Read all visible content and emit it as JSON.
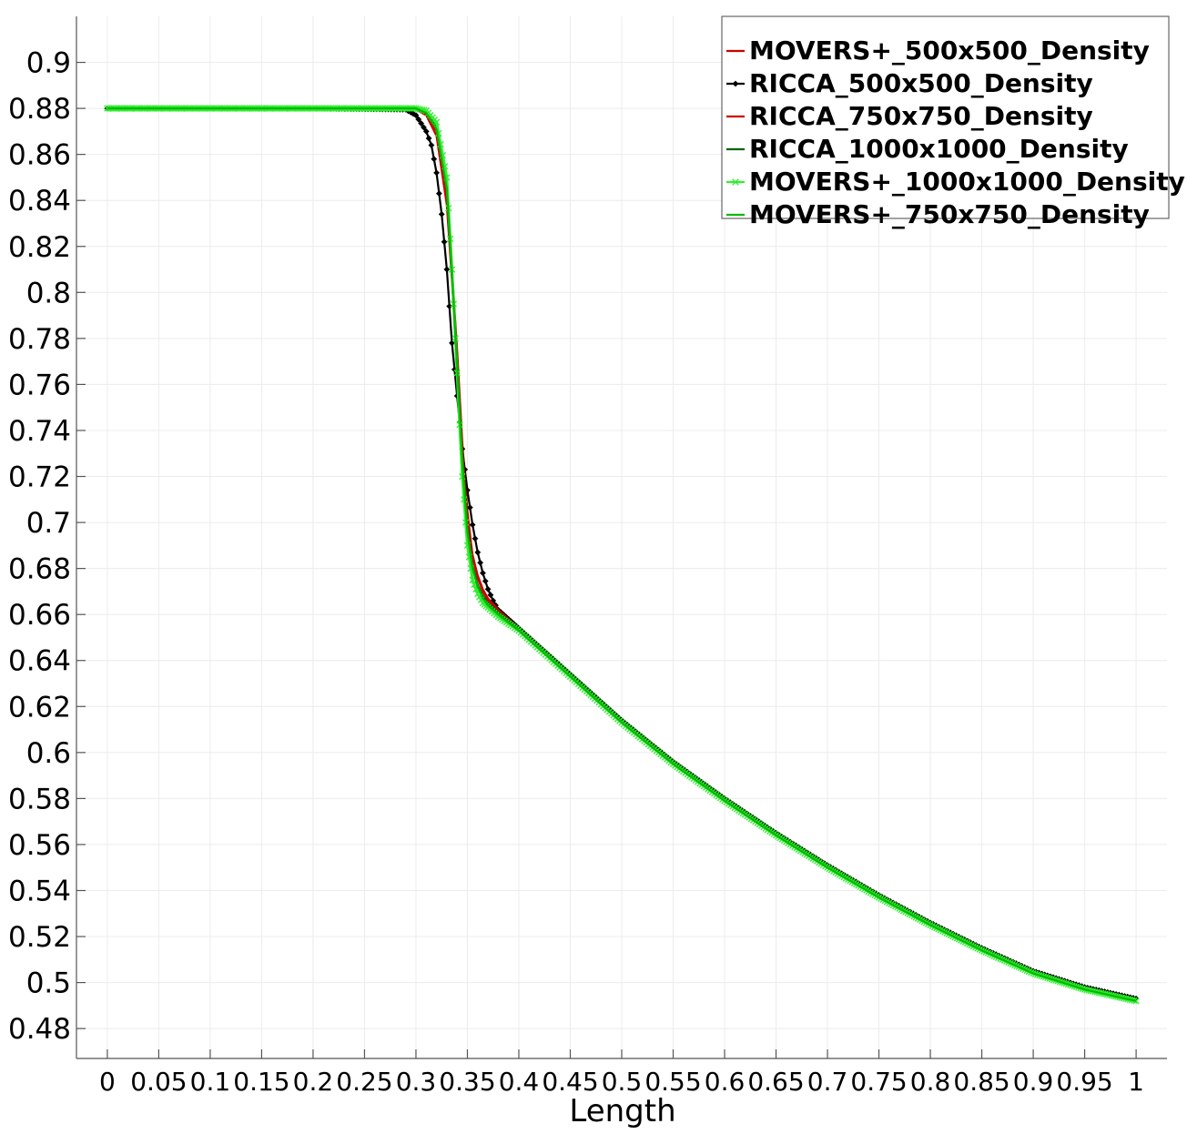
{
  "chart_data": {
    "type": "line",
    "title": "",
    "xlabel": "Length",
    "ylabel": "",
    "xlim": [
      -0.03,
      1.03
    ],
    "ylim": [
      0.467,
      0.92
    ],
    "grid": true,
    "legend_position": "top-right",
    "x_ticks": [
      0,
      0.05,
      0.1,
      0.15,
      0.2,
      0.25,
      0.3,
      0.35,
      0.4,
      0.45,
      0.5,
      0.55,
      0.6,
      0.65,
      0.7,
      0.75,
      0.8,
      0.85,
      0.9,
      0.95,
      1
    ],
    "x_tick_labels": [
      "0",
      "0.05",
      "0.1",
      "0.15",
      "0.2",
      "0.25",
      "0.3",
      "0.35",
      "0.4",
      "0.45",
      "0.5",
      "0.55",
      "0.6",
      "0.65",
      "0.7",
      "0.75",
      "0.8",
      "0.85",
      "0.9",
      "0.95",
      "1"
    ],
    "y_ticks": [
      0.48,
      0.5,
      0.52,
      0.54,
      0.56,
      0.58,
      0.6,
      0.62,
      0.64,
      0.66,
      0.68,
      0.7,
      0.72,
      0.74,
      0.76,
      0.78,
      0.8,
      0.82,
      0.84,
      0.86,
      0.88,
      0.9
    ],
    "y_tick_labels": [
      "0.48",
      "0.5",
      "0.52",
      "0.54",
      "0.56",
      "0.58",
      "0.6",
      "0.62",
      "0.64",
      "0.66",
      "0.68",
      "0.7",
      "0.72",
      "0.74",
      "0.76",
      "0.78",
      "0.8",
      "0.82",
      "0.84",
      "0.86",
      "0.88",
      "0.9"
    ],
    "series": [
      {
        "name": "MOVERS+_500x500_Density",
        "color": "#cc0000",
        "marker": "none",
        "x": [
          0,
          0.1,
          0.2,
          0.3,
          0.31,
          0.32,
          0.33,
          0.335,
          0.34,
          0.345,
          0.35,
          0.355,
          0.36,
          0.365,
          0.37,
          0.38,
          0.4,
          0.45,
          0.5,
          0.55,
          0.6,
          0.65,
          0.7,
          0.75,
          0.8,
          0.85,
          0.9,
          0.95,
          1.0
        ],
        "y": [
          0.88,
          0.88,
          0.88,
          0.8795,
          0.878,
          0.87,
          0.84,
          0.81,
          0.775,
          0.735,
          0.705,
          0.685,
          0.676,
          0.67,
          0.666,
          0.661,
          0.654,
          0.634,
          0.614,
          0.596,
          0.58,
          0.565,
          0.551,
          0.538,
          0.526,
          0.515,
          0.505,
          0.498,
          0.493
        ]
      },
      {
        "name": "RICCA_500x500_Density",
        "color": "#000000",
        "marker": "diamond",
        "x": [
          0,
          0.1,
          0.2,
          0.29,
          0.3,
          0.31,
          0.315,
          0.32,
          0.325,
          0.33,
          0.335,
          0.34,
          0.345,
          0.35,
          0.355,
          0.36,
          0.365,
          0.37,
          0.375,
          0.38,
          0.39,
          0.4,
          0.45,
          0.5,
          0.55,
          0.6,
          0.65,
          0.7,
          0.75,
          0.8,
          0.85,
          0.9,
          0.95,
          1.0
        ],
        "y": [
          0.88,
          0.88,
          0.88,
          0.8795,
          0.877,
          0.87,
          0.864,
          0.852,
          0.834,
          0.81,
          0.778,
          0.755,
          0.732,
          0.714,
          0.699,
          0.687,
          0.678,
          0.671,
          0.666,
          0.662,
          0.658,
          0.654,
          0.634,
          0.614,
          0.596,
          0.58,
          0.565,
          0.551,
          0.538,
          0.526,
          0.515,
          0.505,
          0.498,
          0.493
        ]
      },
      {
        "name": "RICCA_750x750_Density",
        "color": "#cc0000",
        "marker": "none",
        "x": [
          0,
          0.1,
          0.2,
          0.3,
          0.31,
          0.32,
          0.33,
          0.335,
          0.34,
          0.345,
          0.35,
          0.355,
          0.36,
          0.365,
          0.37,
          0.38,
          0.4,
          0.45,
          0.5,
          0.55,
          0.6,
          0.65,
          0.7,
          0.75,
          0.8,
          0.85,
          0.9,
          0.95,
          1.0
        ],
        "y": [
          0.88,
          0.88,
          0.88,
          0.8795,
          0.877,
          0.868,
          0.838,
          0.805,
          0.77,
          0.732,
          0.703,
          0.686,
          0.677,
          0.671,
          0.667,
          0.662,
          0.654,
          0.634,
          0.614,
          0.596,
          0.58,
          0.565,
          0.551,
          0.538,
          0.526,
          0.515,
          0.505,
          0.498,
          0.493
        ]
      },
      {
        "name": "RICCA_1000x1000_Density",
        "color": "#006600",
        "marker": "none",
        "x": [
          0,
          0.1,
          0.2,
          0.3,
          0.31,
          0.32,
          0.33,
          0.335,
          0.34,
          0.345,
          0.35,
          0.355,
          0.36,
          0.365,
          0.37,
          0.38,
          0.4,
          0.45,
          0.5,
          0.55,
          0.6,
          0.65,
          0.7,
          0.75,
          0.8,
          0.85,
          0.9,
          0.95,
          1.0
        ],
        "y": [
          0.88,
          0.88,
          0.88,
          0.88,
          0.878,
          0.872,
          0.845,
          0.808,
          0.77,
          0.728,
          0.698,
          0.681,
          0.673,
          0.668,
          0.665,
          0.661,
          0.654,
          0.634,
          0.614,
          0.596,
          0.58,
          0.565,
          0.551,
          0.538,
          0.526,
          0.515,
          0.505,
          0.498,
          0.493
        ]
      },
      {
        "name": "MOVERS+_1000x1000_Density",
        "color": "#33ee33",
        "marker": "x",
        "x": [
          0,
          0.1,
          0.2,
          0.3,
          0.31,
          0.32,
          0.33,
          0.335,
          0.34,
          0.345,
          0.35,
          0.355,
          0.36,
          0.365,
          0.37,
          0.38,
          0.4,
          0.45,
          0.5,
          0.55,
          0.6,
          0.65,
          0.7,
          0.75,
          0.8,
          0.85,
          0.9,
          0.95,
          1.0
        ],
        "y": [
          0.88,
          0.88,
          0.88,
          0.88,
          0.879,
          0.874,
          0.85,
          0.81,
          0.765,
          0.72,
          0.69,
          0.675,
          0.669,
          0.665,
          0.663,
          0.659,
          0.653,
          0.633,
          0.613,
          0.595,
          0.579,
          0.564,
          0.55,
          0.537,
          0.525,
          0.514,
          0.504,
          0.497,
          0.492
        ]
      },
      {
        "name": "MOVERS+_750x750_Density",
        "color": "#00bb00",
        "marker": "none",
        "x": [
          0,
          0.1,
          0.2,
          0.3,
          0.31,
          0.32,
          0.33,
          0.335,
          0.34,
          0.345,
          0.35,
          0.355,
          0.36,
          0.365,
          0.37,
          0.38,
          0.4,
          0.45,
          0.5,
          0.55,
          0.6,
          0.65,
          0.7,
          0.75,
          0.8,
          0.85,
          0.9,
          0.95,
          1.0
        ],
        "y": [
          0.88,
          0.88,
          0.88,
          0.88,
          0.878,
          0.871,
          0.845,
          0.808,
          0.768,
          0.727,
          0.696,
          0.68,
          0.672,
          0.667,
          0.664,
          0.66,
          0.653,
          0.633,
          0.613,
          0.595,
          0.579,
          0.564,
          0.55,
          0.537,
          0.525,
          0.514,
          0.504,
          0.497,
          0.492
        ]
      }
    ]
  }
}
